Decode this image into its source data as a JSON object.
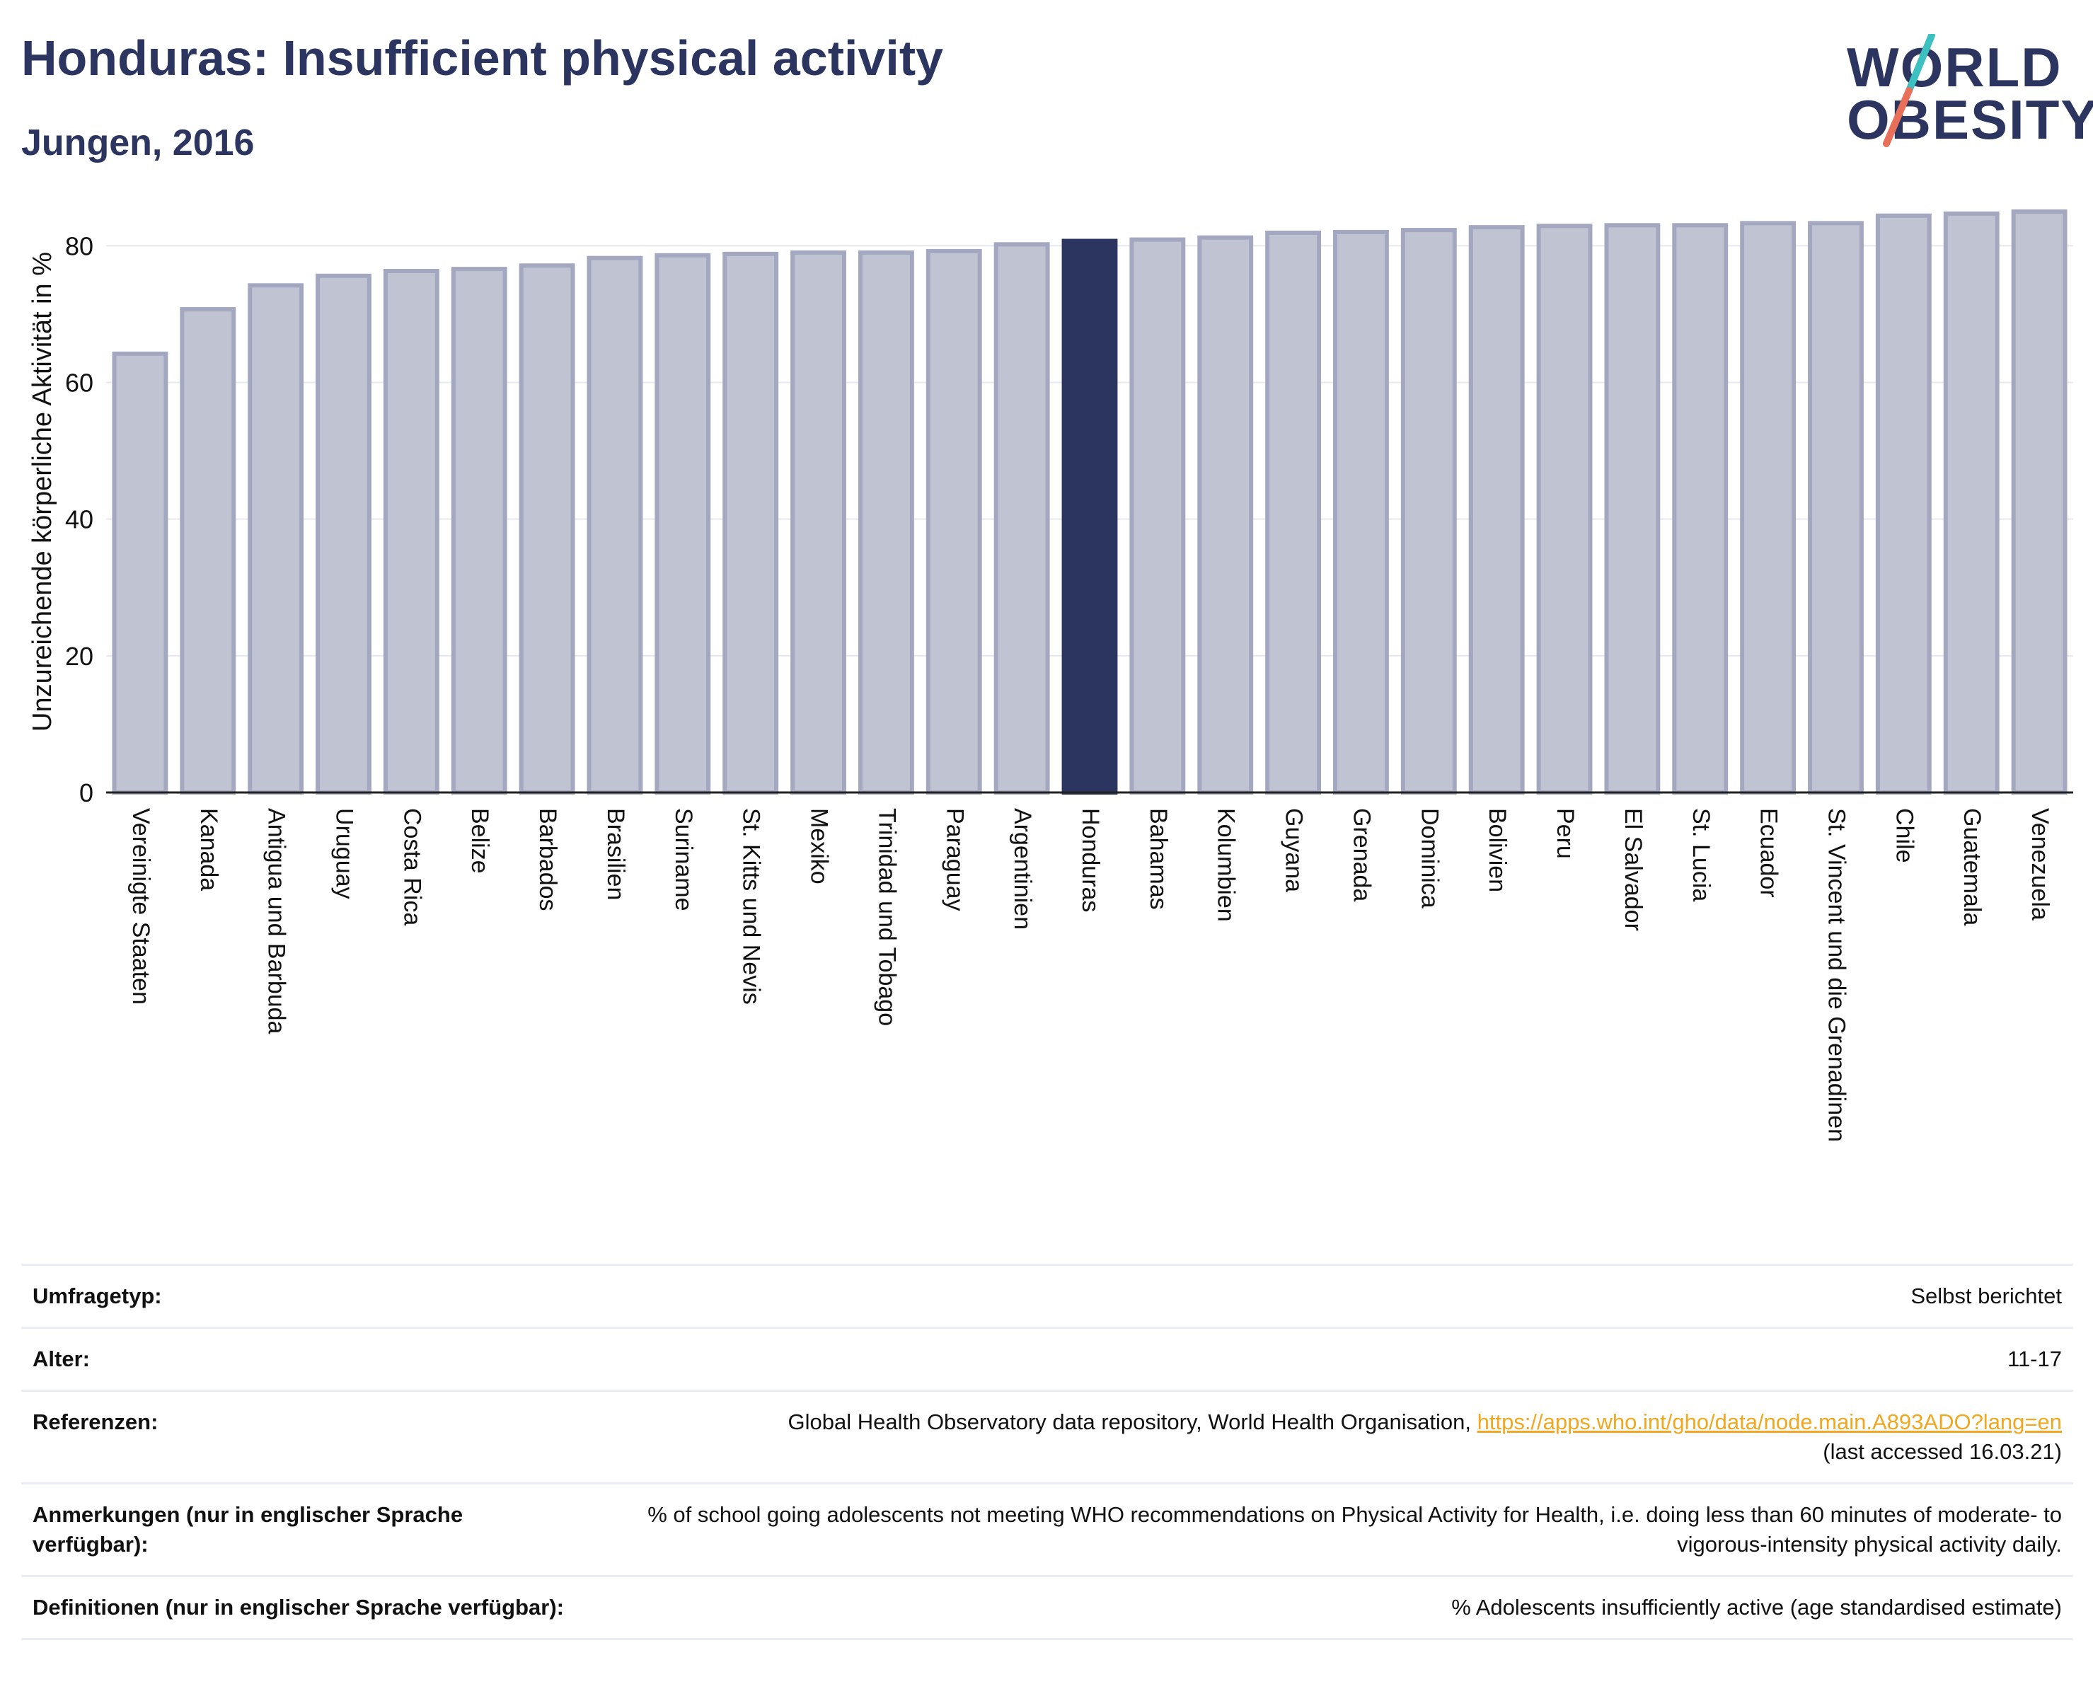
{
  "header": {
    "title": "Honduras: Insufficient physical activity",
    "subtitle": "Jungen, 2016"
  },
  "logo": {
    "line1": "WORLD",
    "line2": "OBESITY",
    "colors": {
      "text": "#2b3560",
      "slash_top": "#3cc0c0",
      "slash_bottom": "#e8705a"
    }
  },
  "chart_data": {
    "type": "bar",
    "ylabel": "Unzureichende körperliche Aktivität in %",
    "ylim": [
      0,
      88
    ],
    "yticks": [
      0,
      20,
      40,
      60,
      80
    ],
    "grid": true,
    "highlight": "Honduras",
    "colors": {
      "bar": "#c0c3d1",
      "bar_edge": "#a3a8c0",
      "highlight": "#2b3560"
    },
    "categories": [
      "Vereinigte Staaten",
      "Kanada",
      "Antigua und Barbuda",
      "Uruguay",
      "Costa Rica",
      "Belize",
      "Barbados",
      "Brasilien",
      "Suriname",
      "St. Kitts und Nevis",
      "Mexiko",
      "Trinidad und Tobago",
      "Paraguay",
      "Argentinien",
      "Honduras",
      "Bahamas",
      "Kolumbien",
      "Guyana",
      "Grenada",
      "Dominica",
      "Bolivien",
      "Peru",
      "El Salvador",
      "St. Lucia",
      "Ecuador",
      "St. Vincent und die Grenadinen",
      "Chile",
      "Guatemala",
      "Venezuela"
    ],
    "values": [
      64.2,
      70.7,
      74.2,
      75.6,
      76.3,
      76.6,
      77.1,
      78.2,
      78.6,
      78.8,
      79.0,
      79.0,
      79.2,
      80.2,
      80.7,
      80.9,
      81.2,
      81.9,
      82.0,
      82.3,
      82.7,
      82.9,
      83.0,
      83.0,
      83.3,
      83.3,
      84.4,
      84.7,
      85.0
    ]
  },
  "info": [
    {
      "label": "Umfragetyp:",
      "value": "Selbst berichtet"
    },
    {
      "label": "Alter:",
      "value": "11-17"
    },
    {
      "label": "Referenzen:",
      "value": "Global Health Observatory data repository, World Health Organisation,",
      "link": "https://apps.who.int/gho/data/node.main.A893ADO?lang=en",
      "value2": "(last accessed 16.03.21)"
    },
    {
      "label": "Anmerkungen (nur in englischer Sprache verfügbar):",
      "value": "% of school going adolescents not meeting WHO recommendations on Physical Activity for Health, i.e. doing less than 60 minutes of moderate- to vigorous-intensity physical activity daily."
    },
    {
      "label": "Definitionen (nur in englischer Sprache verfügbar):",
      "value": "% Adolescents insufficiently active (age standardised estimate)"
    }
  ]
}
